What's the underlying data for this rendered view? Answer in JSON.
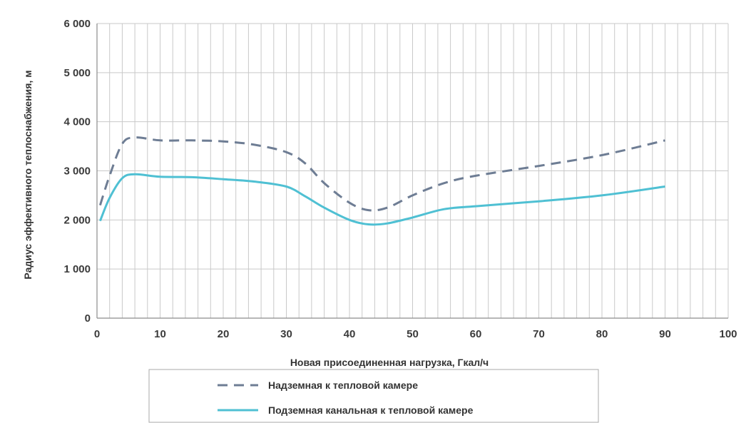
{
  "chart_data": {
    "type": "line",
    "xlabel": "Новая присоединенная нагрузка, Гкал/ч",
    "ylabel": "Радиус эффективного теплоснабжения, м",
    "xlim": [
      0,
      100
    ],
    "ylim": [
      0,
      6000
    ],
    "x_ticks": [
      0,
      10,
      20,
      30,
      40,
      50,
      60,
      70,
      80,
      90,
      100
    ],
    "y_ticks": [
      0,
      1000,
      2000,
      3000,
      4000,
      5000,
      6000
    ],
    "x_tick_labels": [
      "0",
      "10",
      "20",
      "30",
      "40",
      "50",
      "60",
      "70",
      "80",
      "90",
      "100"
    ],
    "y_tick_labels": [
      "0",
      "1 000",
      "2 000",
      "3 000",
      "4 000",
      "5 000",
      "6 000"
    ],
    "grid": {
      "vertical_minor_step": 2,
      "horizontal_major": true
    },
    "legend_position": "bottom",
    "series": [
      {
        "name": "Надземная к тепловой камере",
        "style": "dashed",
        "color": "#6e7d94",
        "x": [
          0.5,
          2,
          4,
          6,
          10,
          15,
          20,
          25,
          30,
          33,
          36,
          40,
          43,
          46,
          50,
          55,
          60,
          70,
          80,
          90
        ],
        "y": [
          2300,
          2900,
          3550,
          3680,
          3620,
          3620,
          3600,
          3530,
          3380,
          3150,
          2750,
          2350,
          2200,
          2250,
          2500,
          2750,
          2900,
          3100,
          3320,
          3620
        ]
      },
      {
        "name": "Подземная канальная к тепловой камере",
        "style": "solid",
        "color": "#4fc0d3",
        "x": [
          0.5,
          2,
          4,
          6,
          10,
          15,
          20,
          25,
          30,
          33,
          36,
          40,
          43,
          46,
          50,
          55,
          60,
          70,
          80,
          90
        ],
        "y": [
          1980,
          2450,
          2850,
          2930,
          2880,
          2870,
          2830,
          2780,
          2680,
          2480,
          2250,
          2000,
          1910,
          1930,
          2050,
          2220,
          2280,
          2380,
          2500,
          2680
        ]
      }
    ]
  }
}
